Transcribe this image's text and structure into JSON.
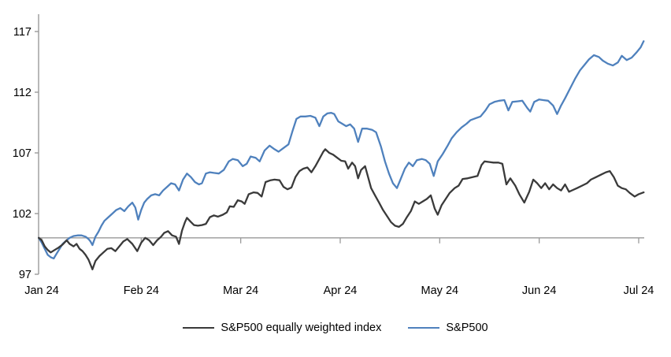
{
  "colors": {
    "background": "#ffffff",
    "axis": "#9a9a9a",
    "text": "#000000",
    "sp500_equal_weight": "#3a3a3a",
    "sp500": "#4f81bd"
  },
  "chart_data": {
    "type": "line",
    "title": "",
    "xlabel": "",
    "ylabel": "",
    "grid": false,
    "legend_position": "bottom",
    "x_axis": {
      "unit": "months since Jan 2024",
      "labels": [
        "Jan 24",
        "Feb 24",
        "Mar 24",
        "Apr 24",
        "May 24",
        "Jun 24",
        "Jul 24"
      ],
      "tick_positions": [
        0,
        1,
        2,
        3,
        4,
        5,
        6
      ],
      "range": [
        -0.05,
        6.08
      ]
    },
    "y_axis": {
      "ticks": [
        97,
        102,
        107,
        112,
        117
      ],
      "range": [
        97,
        117
      ],
      "axis_crosses_at": 100
    },
    "baseline_value": 100,
    "series": [
      {
        "name": "S&P500 equally weighted index",
        "color": "#3a3a3a",
        "points": [
          [
            -0.03,
            100
          ],
          [
            0,
            99.8
          ],
          [
            0.03,
            99.3
          ],
          [
            0.06,
            99
          ],
          [
            0.09,
            98.8
          ],
          [
            0.13,
            99
          ],
          [
            0.17,
            99.2
          ],
          [
            0.21,
            99.45
          ],
          [
            0.25,
            99.8
          ],
          [
            0.28,
            99.5
          ],
          [
            0.32,
            99.3
          ],
          [
            0.35,
            99.5
          ],
          [
            0.38,
            99.1
          ],
          [
            0.41,
            98.9
          ],
          [
            0.44,
            98.6
          ],
          [
            0.47,
            98.2
          ],
          [
            0.51,
            97.4
          ],
          [
            0.54,
            98.1
          ],
          [
            0.58,
            98.5
          ],
          [
            0.62,
            98.8
          ],
          [
            0.66,
            99.1
          ],
          [
            0.7,
            99.15
          ],
          [
            0.74,
            98.9
          ],
          [
            0.78,
            99.3
          ],
          [
            0.82,
            99.7
          ],
          [
            0.86,
            99.9
          ],
          [
            0.91,
            99.5
          ],
          [
            0.96,
            98.9
          ],
          [
            1,
            99.6
          ],
          [
            1.04,
            100
          ],
          [
            1.08,
            99.8
          ],
          [
            1.12,
            99.4
          ],
          [
            1.16,
            99.8
          ],
          [
            1.2,
            100.1
          ],
          [
            1.23,
            100.4
          ],
          [
            1.27,
            100.55
          ],
          [
            1.31,
            100.2
          ],
          [
            1.35,
            100.1
          ],
          [
            1.38,
            99.5
          ],
          [
            1.41,
            100.6
          ],
          [
            1.44,
            101.3
          ],
          [
            1.46,
            101.65
          ],
          [
            1.5,
            101.3
          ],
          [
            1.53,
            101.05
          ],
          [
            1.57,
            101
          ],
          [
            1.61,
            101.05
          ],
          [
            1.65,
            101.15
          ],
          [
            1.69,
            101.7
          ],
          [
            1.73,
            101.85
          ],
          [
            1.77,
            101.75
          ],
          [
            1.82,
            101.9
          ],
          [
            1.86,
            102.1
          ],
          [
            1.89,
            102.6
          ],
          [
            1.93,
            102.55
          ],
          [
            1.97,
            103.1
          ],
          [
            2.01,
            103
          ],
          [
            2.04,
            102.8
          ],
          [
            2.08,
            103.6
          ],
          [
            2.13,
            103.75
          ],
          [
            2.17,
            103.7
          ],
          [
            2.21,
            103.4
          ],
          [
            2.25,
            104.6
          ],
          [
            2.3,
            104.75
          ],
          [
            2.34,
            104.8
          ],
          [
            2.39,
            104.75
          ],
          [
            2.43,
            104.2
          ],
          [
            2.47,
            104
          ],
          [
            2.51,
            104.15
          ],
          [
            2.55,
            105
          ],
          [
            2.59,
            105.5
          ],
          [
            2.63,
            105.7
          ],
          [
            2.67,
            105.8
          ],
          [
            2.71,
            105.4
          ],
          [
            2.75,
            105.9
          ],
          [
            2.79,
            106.5
          ],
          [
            2.83,
            107.1
          ],
          [
            2.85,
            107.3
          ],
          [
            2.89,
            107
          ],
          [
            2.93,
            106.85
          ],
          [
            2.97,
            106.6
          ],
          [
            3.01,
            106.35
          ],
          [
            3.05,
            106.3
          ],
          [
            3.08,
            105.7
          ],
          [
            3.12,
            106.2
          ],
          [
            3.15,
            105.9
          ],
          [
            3.18,
            104.9
          ],
          [
            3.21,
            105.6
          ],
          [
            3.25,
            105.9
          ],
          [
            3.28,
            105
          ],
          [
            3.31,
            104.1
          ],
          [
            3.35,
            103.5
          ],
          [
            3.39,
            102.9
          ],
          [
            3.43,
            102.3
          ],
          [
            3.47,
            101.8
          ],
          [
            3.51,
            101.3
          ],
          [
            3.55,
            101
          ],
          [
            3.59,
            100.9
          ],
          [
            3.63,
            101.15
          ],
          [
            3.67,
            101.7
          ],
          [
            3.71,
            102.2
          ],
          [
            3.75,
            103
          ],
          [
            3.79,
            102.8
          ],
          [
            3.83,
            103
          ],
          [
            3.87,
            103.2
          ],
          [
            3.91,
            103.5
          ],
          [
            3.95,
            102.4
          ],
          [
            3.98,
            101.9
          ],
          [
            4.02,
            102.7
          ],
          [
            4.06,
            103.2
          ],
          [
            4.1,
            103.7
          ],
          [
            4.15,
            104.1
          ],
          [
            4.19,
            104.3
          ],
          [
            4.23,
            104.85
          ],
          [
            4.28,
            104.9
          ],
          [
            4.33,
            105
          ],
          [
            4.38,
            105.1
          ],
          [
            4.42,
            106
          ],
          [
            4.45,
            106.3
          ],
          [
            4.5,
            106.25
          ],
          [
            4.54,
            106.2
          ],
          [
            4.59,
            106.2
          ],
          [
            4.63,
            106.1
          ],
          [
            4.67,
            104.4
          ],
          [
            4.71,
            104.9
          ],
          [
            4.76,
            104.3
          ],
          [
            4.8,
            103.6
          ],
          [
            4.85,
            102.9
          ],
          [
            4.9,
            103.8
          ],
          [
            4.94,
            104.8
          ],
          [
            4.98,
            104.5
          ],
          [
            5.02,
            104.1
          ],
          [
            5.06,
            104.5
          ],
          [
            5.1,
            104
          ],
          [
            5.14,
            104.4
          ],
          [
            5.18,
            104.1
          ],
          [
            5.22,
            103.9
          ],
          [
            5.26,
            104.4
          ],
          [
            5.3,
            103.8
          ],
          [
            5.34,
            103.95
          ],
          [
            5.38,
            104.1
          ],
          [
            5.43,
            104.3
          ],
          [
            5.48,
            104.5
          ],
          [
            5.52,
            104.8
          ],
          [
            5.57,
            105
          ],
          [
            5.62,
            105.2
          ],
          [
            5.67,
            105.4
          ],
          [
            5.71,
            105.5
          ],
          [
            5.75,
            105
          ],
          [
            5.79,
            104.3
          ],
          [
            5.83,
            104.1
          ],
          [
            5.87,
            104
          ],
          [
            5.91,
            103.7
          ],
          [
            5.96,
            103.4
          ],
          [
            6,
            103.6
          ],
          [
            6.05,
            103.75
          ]
        ]
      },
      {
        "name": "S&P500",
        "color": "#4f81bd",
        "points": [
          [
            -0.03,
            100
          ],
          [
            0,
            99.6
          ],
          [
            0.03,
            99.1
          ],
          [
            0.06,
            98.6
          ],
          [
            0.09,
            98.4
          ],
          [
            0.12,
            98.3
          ],
          [
            0.15,
            98.7
          ],
          [
            0.18,
            99.1
          ],
          [
            0.21,
            99.5
          ],
          [
            0.25,
            99.8
          ],
          [
            0.28,
            100
          ],
          [
            0.32,
            100.15
          ],
          [
            0.36,
            100.2
          ],
          [
            0.4,
            100.2
          ],
          [
            0.44,
            100.1
          ],
          [
            0.47,
            99.9
          ],
          [
            0.49,
            99.7
          ],
          [
            0.51,
            99.4
          ],
          [
            0.54,
            100.1
          ],
          [
            0.57,
            100.5
          ],
          [
            0.6,
            101
          ],
          [
            0.63,
            101.4
          ],
          [
            0.67,
            101.7
          ],
          [
            0.71,
            102
          ],
          [
            0.75,
            102.3
          ],
          [
            0.79,
            102.45
          ],
          [
            0.83,
            102.2
          ],
          [
            0.87,
            102.6
          ],
          [
            0.91,
            102.9
          ],
          [
            0.94,
            102.5
          ],
          [
            0.97,
            101.5
          ],
          [
            1,
            102.3
          ],
          [
            1.03,
            102.9
          ],
          [
            1.06,
            103.2
          ],
          [
            1.1,
            103.5
          ],
          [
            1.14,
            103.6
          ],
          [
            1.18,
            103.5
          ],
          [
            1.22,
            103.9
          ],
          [
            1.26,
            104.2
          ],
          [
            1.3,
            104.5
          ],
          [
            1.34,
            104.4
          ],
          [
            1.38,
            103.9
          ],
          [
            1.42,
            104.8
          ],
          [
            1.46,
            105.3
          ],
          [
            1.5,
            105
          ],
          [
            1.54,
            104.6
          ],
          [
            1.58,
            104.4
          ],
          [
            1.61,
            104.5
          ],
          [
            1.65,
            105.3
          ],
          [
            1.69,
            105.4
          ],
          [
            1.73,
            105.35
          ],
          [
            1.78,
            105.3
          ],
          [
            1.83,
            105.6
          ],
          [
            1.88,
            106.3
          ],
          [
            1.92,
            106.5
          ],
          [
            1.97,
            106.4
          ],
          [
            2.02,
            105.9
          ],
          [
            2.06,
            106.1
          ],
          [
            2.1,
            106.7
          ],
          [
            2.15,
            106.6
          ],
          [
            2.19,
            106.3
          ],
          [
            2.24,
            107.2
          ],
          [
            2.29,
            107.6
          ],
          [
            2.34,
            107.3
          ],
          [
            2.38,
            107.1
          ],
          [
            2.43,
            107.4
          ],
          [
            2.48,
            107.7
          ],
          [
            2.52,
            108.8
          ],
          [
            2.56,
            109.8
          ],
          [
            2.6,
            110
          ],
          [
            2.65,
            110
          ],
          [
            2.7,
            110.05
          ],
          [
            2.75,
            109.9
          ],
          [
            2.79,
            109.2
          ],
          [
            2.83,
            110
          ],
          [
            2.87,
            110.25
          ],
          [
            2.91,
            110.3
          ],
          [
            2.94,
            110.2
          ],
          [
            2.98,
            109.6
          ],
          [
            3.02,
            109.4
          ],
          [
            3.06,
            109.2
          ],
          [
            3.1,
            109.35
          ],
          [
            3.14,
            109
          ],
          [
            3.18,
            107.9
          ],
          [
            3.22,
            109
          ],
          [
            3.27,
            109
          ],
          [
            3.32,
            108.9
          ],
          [
            3.36,
            108.7
          ],
          [
            3.41,
            107.5
          ],
          [
            3.45,
            106.3
          ],
          [
            3.49,
            105.3
          ],
          [
            3.53,
            104.5
          ],
          [
            3.57,
            104.1
          ],
          [
            3.61,
            104.9
          ],
          [
            3.65,
            105.7
          ],
          [
            3.69,
            106.2
          ],
          [
            3.73,
            105.9
          ],
          [
            3.77,
            106.4
          ],
          [
            3.82,
            106.5
          ],
          [
            3.86,
            106.4
          ],
          [
            3.9,
            106.1
          ],
          [
            3.94,
            105.1
          ],
          [
            3.98,
            106.3
          ],
          [
            4.03,
            106.9
          ],
          [
            4.08,
            107.6
          ],
          [
            4.12,
            108.2
          ],
          [
            4.17,
            108.7
          ],
          [
            4.22,
            109.1
          ],
          [
            4.27,
            109.4
          ],
          [
            4.31,
            109.7
          ],
          [
            4.36,
            109.85
          ],
          [
            4.41,
            110
          ],
          [
            4.46,
            110.5
          ],
          [
            4.5,
            111
          ],
          [
            4.55,
            111.2
          ],
          [
            4.6,
            111.3
          ],
          [
            4.65,
            111.35
          ],
          [
            4.69,
            110.5
          ],
          [
            4.73,
            111.2
          ],
          [
            4.78,
            111.25
          ],
          [
            4.83,
            111.3
          ],
          [
            4.88,
            110.7
          ],
          [
            4.91,
            110.4
          ],
          [
            4.95,
            111.2
          ],
          [
            5,
            111.4
          ],
          [
            5.04,
            111.35
          ],
          [
            5.09,
            111.3
          ],
          [
            5.14,
            110.9
          ],
          [
            5.18,
            110.2
          ],
          [
            5.22,
            110.9
          ],
          [
            5.26,
            111.5
          ],
          [
            5.31,
            112.3
          ],
          [
            5.36,
            113.1
          ],
          [
            5.41,
            113.8
          ],
          [
            5.45,
            114.2
          ],
          [
            5.5,
            114.7
          ],
          [
            5.55,
            115.05
          ],
          [
            5.6,
            114.9
          ],
          [
            5.64,
            114.6
          ],
          [
            5.69,
            114.35
          ],
          [
            5.74,
            114.2
          ],
          [
            5.79,
            114.45
          ],
          [
            5.83,
            115
          ],
          [
            5.88,
            114.65
          ],
          [
            5.93,
            114.85
          ],
          [
            5.98,
            115.3
          ],
          [
            6.02,
            115.7
          ],
          [
            6.05,
            116.2
          ]
        ]
      }
    ]
  },
  "legend": {
    "items": [
      {
        "label": "S&P500 equally weighted index"
      },
      {
        "label": "S&P500"
      }
    ]
  }
}
